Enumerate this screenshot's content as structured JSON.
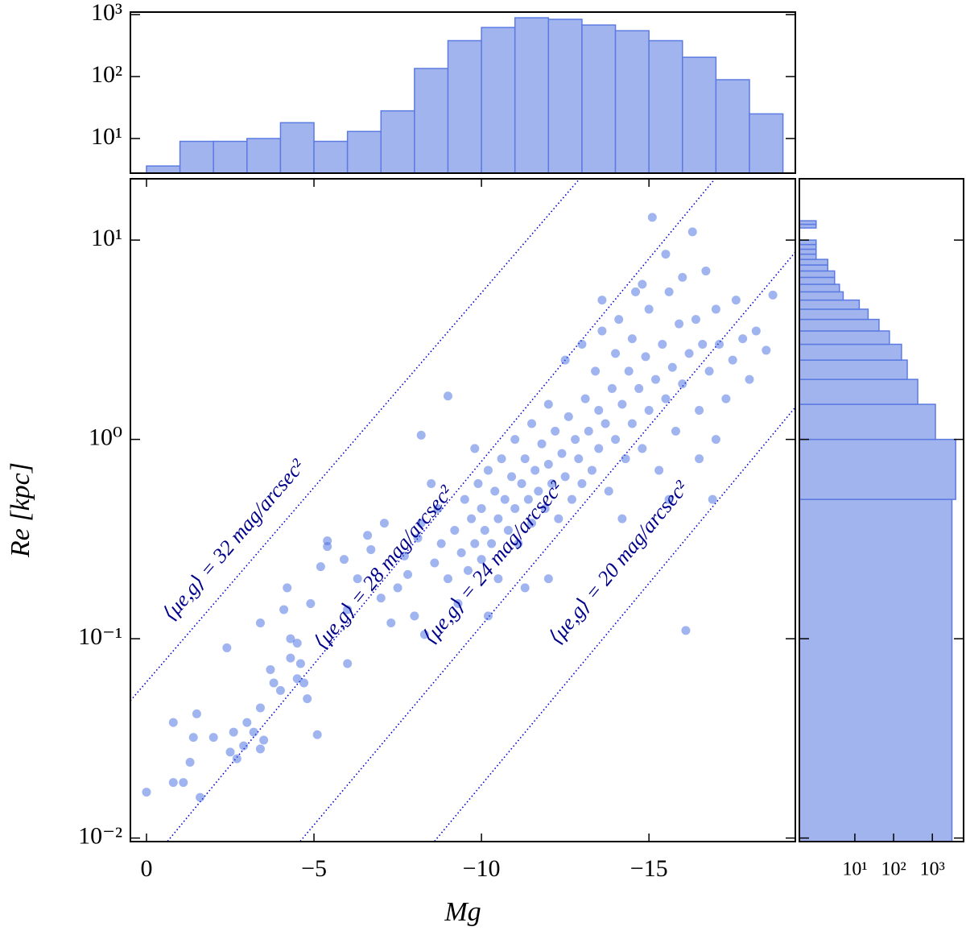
{
  "chart_data": [
    {
      "type": "scatter",
      "xlabel": "Mg",
      "ylabel": "Re [kpc]",
      "xlim": [
        0.48,
        -19.37
      ],
      "ylim": [
        0.0096,
        20.3
      ],
      "yscale": "log",
      "xticks": [
        0,
        {
          "value": -5,
          "label": "−5"
        },
        {
          "value": -10,
          "label": "−10"
        },
        {
          "value": -15,
          "label": "−15"
        }
      ],
      "yticks": [
        {
          "value": 0.01,
          "label": "10⁻²"
        },
        {
          "value": 0.1,
          "label": "10⁻¹"
        },
        {
          "value": 1,
          "label": "10⁰"
        },
        {
          "value": 10,
          "label": "10¹"
        }
      ],
      "color": "#4169e1",
      "x": [
        0,
        -0.8,
        -0.8,
        -1.1,
        -1.3,
        -1.4,
        -1.5,
        -1.6,
        -2.0,
        -2.4,
        -2.5,
        -2.6,
        -2.7,
        -2.9,
        -3.0,
        -3.2,
        -3.4,
        -3.5,
        -3.4,
        -3.4,
        -3.7,
        -3.8,
        -4.0,
        -4.1,
        -4.2,
        -4.3,
        -4.3,
        -4.5,
        -4.5,
        -4.6,
        -4.7,
        -4.8,
        -4.9,
        -5.1,
        -5.2,
        -5.4,
        -5.4,
        -5.9,
        -6.0,
        -6.0,
        -6.3,
        -6.6,
        -6.7,
        -7.0,
        -7.1,
        -7.3,
        -7.5,
        -7.7,
        -7.8,
        -8.0,
        -8.1,
        -8.2,
        -8.3,
        -8.2,
        -8.6,
        -8.7,
        -8.8,
        -9.0,
        -9.0,
        -9.2,
        -9.4,
        -9.5,
        -9.6,
        -9.7,
        -9.8,
        -9.9,
        -10.0,
        -10.0,
        -10.1,
        -10.2,
        -10.3,
        -10.4,
        -10.5,
        -10.5,
        -10.6,
        -10.7,
        -10.8,
        -10.9,
        -11.0,
        -11.0,
        -11.1,
        -11.2,
        -11.3,
        -11.4,
        -11.5,
        -11.5,
        -11.6,
        -11.7,
        -11.8,
        -11.9,
        -12.0,
        -12.0,
        -12.1,
        -12.2,
        -12.3,
        -12.4,
        -12.5,
        -12.5,
        -12.6,
        -12.7,
        -12.8,
        -12.9,
        -13.0,
        -13.0,
        -13.1,
        -13.2,
        -13.3,
        -13.4,
        -13.5,
        -13.5,
        -13.6,
        -13.7,
        -13.8,
        -13.9,
        -14.0,
        -14.0,
        -14.1,
        -14.2,
        -14.3,
        -14.4,
        -14.5,
        -14.5,
        -14.6,
        -14.7,
        -14.8,
        -14.9,
        -15.0,
        -15.0,
        -15.1,
        -15.2,
        -15.3,
        -15.4,
        -15.5,
        -15.5,
        -15.6,
        -15.7,
        -15.8,
        -15.9,
        -16.0,
        -16.0,
        -16.1,
        -16.2,
        -16.3,
        -16.4,
        -16.5,
        -16.6,
        -16.7,
        -16.8,
        -16.9,
        -17.0,
        -17.1,
        -17.3,
        -17.5,
        -17.6,
        -17.8,
        -18.0,
        -18.2,
        -18.5,
        -18.7,
        -9.3,
        -10.2,
        -11.3,
        -12.0,
        -8.5,
        -9.8,
        -13.6,
        -14.8,
        -14.2,
        -15.6,
        -16.5,
        -17.0
      ],
      "values": [
        0.017,
        0.038,
        0.019,
        0.019,
        0.024,
        0.032,
        0.042,
        0.016,
        0.032,
        0.09,
        0.027,
        0.034,
        0.025,
        0.029,
        0.038,
        0.034,
        0.045,
        0.031,
        0.028,
        0.12,
        0.07,
        0.06,
        0.055,
        0.14,
        0.18,
        0.1,
        0.08,
        0.063,
        0.095,
        0.075,
        0.06,
        0.05,
        0.15,
        0.033,
        0.23,
        0.29,
        0.31,
        0.25,
        0.075,
        0.14,
        0.2,
        0.33,
        0.28,
        0.16,
        0.38,
        0.12,
        0.18,
        0.26,
        0.21,
        0.13,
        0.32,
        0.38,
        0.105,
        1.05,
        0.24,
        0.45,
        0.3,
        1.65,
        0.2,
        0.35,
        0.27,
        0.5,
        0.22,
        0.4,
        0.3,
        0.6,
        0.25,
        0.45,
        0.35,
        0.7,
        0.3,
        0.55,
        0.4,
        0.2,
        0.8,
        0.5,
        0.35,
        0.65,
        0.45,
        1.0,
        0.3,
        0.6,
        0.8,
        0.5,
        1.2,
        0.38,
        0.7,
        0.55,
        0.95,
        0.45,
        0.75,
        1.5,
        0.6,
        1.1,
        0.4,
        0.85,
        2.5,
        0.65,
        1.3,
        0.5,
        1.0,
        0.8,
        3.0,
        0.6,
        1.6,
        1.1,
        0.7,
        2.2,
        0.9,
        1.4,
        3.5,
        1.2,
        0.55,
        1.8,
        2.7,
        1.0,
        4.0,
        1.5,
        0.8,
        2.2,
        3.2,
        1.2,
        5.5,
        1.8,
        0.9,
        2.6,
        4.5,
        1.4,
        13,
        2.0,
        0.7,
        3.0,
        8.5,
        1.6,
        5.5,
        2.3,
        1.1,
        3.8,
        6.5,
        1.9,
        0.11,
        2.7,
        11,
        4.0,
        1.4,
        3.0,
        7.0,
        2.2,
        0.5,
        4.5,
        3.0,
        1.6,
        2.5,
        5.0,
        3.2,
        2.0,
        3.5,
        2.8,
        5.3,
        0.15,
        0.13,
        0.18,
        0.2,
        0.6,
        0.9,
        5.0,
        6.0,
        0.4,
        0.5,
        0.8,
        1.0
      ],
      "line_color": "#0000cd",
      "label_color": "#00008b",
      "lines": [
        {
          "label": "⟨μe,g⟩ = 32 mag/arcsec²",
          "x": [
            0.48,
            -12.93
          ],
          "values": [
            0.0489,
            20.3
          ]
        },
        {
          "label": "⟨μe,g⟩ = 28 mag/arcsec²",
          "x": [
            -0.63,
            -16.97
          ],
          "values": [
            0.00964,
            20.3
          ]
        },
        {
          "label": "⟨μe,g⟩ = 24 mag/arcsec²",
          "x": [
            -4.59,
            -19.37
          ],
          "values": [
            0.00964,
            8.7
          ]
        },
        {
          "label": "⟨μe,g⟩ = 20 mag/arcsec²",
          "x": [
            -8.6,
            -19.37
          ],
          "values": [
            0.00964,
            1.45
          ]
        }
      ]
    },
    {
      "type": "histogram",
      "orientation": "vertical",
      "color": "#a2b4ee",
      "edgecolor": "#5b7be2",
      "xlim": [
        0.48,
        -19.37
      ],
      "ylim": [
        2.76,
        1100
      ],
      "yscale": "log",
      "yticks": [
        {
          "value": 10,
          "label": "10¹"
        },
        {
          "value": 100,
          "label": "10²"
        },
        {
          "value": 1000,
          "label": "10³"
        }
      ],
      "bins": [
        0,
        -1,
        -2,
        -3,
        -4,
        -5,
        -6,
        -7,
        -8,
        -9,
        -10,
        -11,
        -12,
        -13,
        -14,
        -15,
        -16,
        -17,
        -18,
        -19
      ],
      "values": [
        3.6,
        9,
        9,
        10,
        18,
        9,
        13,
        28,
        135,
        380,
        620,
        890,
        840,
        680,
        550,
        380,
        205,
        89,
        25
      ]
    },
    {
      "type": "histogram",
      "orientation": "horizontal",
      "color": "#a2b4ee",
      "edgecolor": "#5b7be2",
      "xlim": [
        0.37,
        6400
      ],
      "xscale": "log",
      "ylim": [
        0.0096,
        20.3
      ],
      "yscale": "log",
      "xticks": [
        {
          "value": 10,
          "label": "10¹"
        },
        {
          "value": 100,
          "label": "10²"
        },
        {
          "value": 1000,
          "label": "10³"
        }
      ],
      "yticks": [
        0.01,
        0.1,
        1,
        10
      ],
      "bins": [
        0,
        0.5,
        1,
        1.5,
        2,
        2.5,
        3,
        3.5,
        4,
        4.5,
        5,
        5.5,
        6,
        6.5,
        7,
        7.5,
        8,
        8.5,
        9,
        9.5,
        10,
        10.5,
        11,
        11.5,
        12,
        12.5,
        13
      ],
      "values": [
        3200,
        4000,
        1200,
        420,
        225,
        160,
        78,
        42,
        22,
        13,
        5,
        4,
        3,
        3,
        2,
        2,
        1,
        1,
        1,
        1,
        0,
        0,
        0,
        1,
        1,
        0
      ]
    }
  ]
}
